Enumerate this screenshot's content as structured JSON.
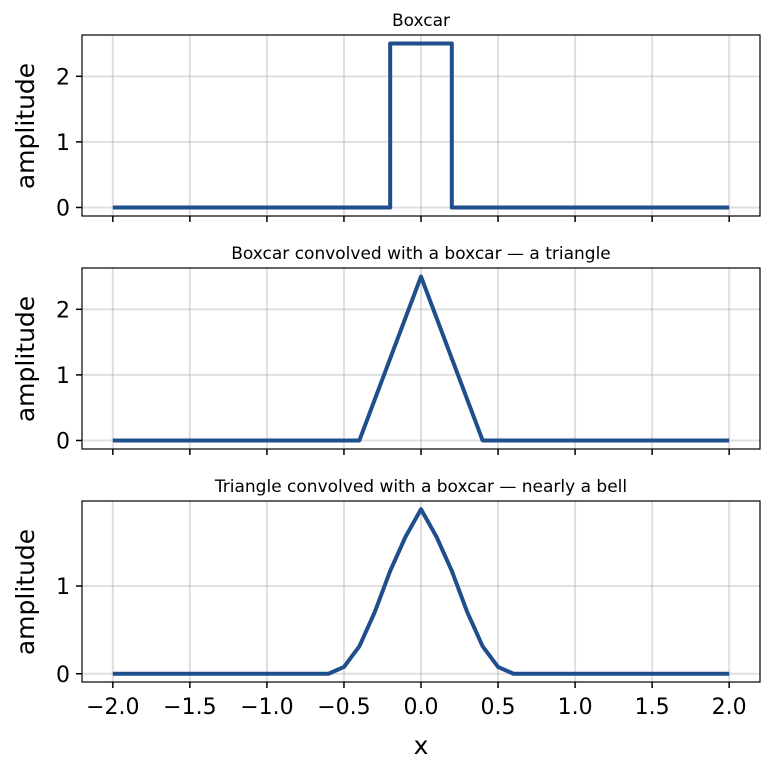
{
  "chart_data": [
    {
      "type": "line",
      "title": "Boxcar",
      "ylabel": "amplitude",
      "xlabel": "",
      "xlim": [
        -2.2,
        2.2
      ],
      "ylim": [
        -0.13,
        2.63
      ],
      "x_ticks": [
        -2.0,
        -1.5,
        -1.0,
        -0.5,
        0.0,
        0.5,
        1.0,
        1.5,
        2.0
      ],
      "y_ticks": [
        0,
        1,
        2
      ],
      "grid": true,
      "show_x_tick_labels": false,
      "series": [
        {
          "color": "#1f4e8c",
          "x": [
            -2.0,
            -0.2,
            -0.2,
            0.2,
            0.2,
            2.0
          ],
          "y": [
            0,
            0,
            2.5,
            2.5,
            0,
            0
          ]
        }
      ]
    },
    {
      "type": "line",
      "title": "Boxcar convolved with a boxcar — a triangle",
      "ylabel": "amplitude",
      "xlabel": "",
      "xlim": [
        -2.2,
        2.2
      ],
      "ylim": [
        -0.13,
        2.63
      ],
      "x_ticks": [
        -2.0,
        -1.5,
        -1.0,
        -0.5,
        0.0,
        0.5,
        1.0,
        1.5,
        2.0
      ],
      "y_ticks": [
        0,
        1,
        2
      ],
      "grid": true,
      "show_x_tick_labels": false,
      "series": [
        {
          "color": "#1f4e8c",
          "x": [
            -2.0,
            -0.4,
            0.0,
            0.4,
            2.0
          ],
          "y": [
            0,
            0,
            2.5,
            0,
            0
          ]
        }
      ]
    },
    {
      "type": "line",
      "title": "Triangle convolved with a boxcar — nearly a bell",
      "ylabel": "amplitude",
      "xlabel": "x",
      "xlim": [
        -2.2,
        2.2
      ],
      "ylim": [
        -0.094,
        1.969
      ],
      "x_ticks": [
        -2.0,
        -1.5,
        -1.0,
        -0.5,
        0.0,
        0.5,
        1.0,
        1.5,
        2.0
      ],
      "x_tick_labels": [
        "−2.0",
        "−1.5",
        "−1.0",
        "−0.5",
        "0.0",
        "0.5",
        "1.0",
        "1.5",
        "2.0"
      ],
      "y_ticks": [
        0,
        1
      ],
      "grid": true,
      "show_x_tick_labels": true,
      "series": [
        {
          "color": "#1f4e8c",
          "x": [
            -2.0,
            -0.6,
            -0.5,
            -0.4,
            -0.3,
            -0.2,
            -0.1,
            0.0,
            0.1,
            0.2,
            0.3,
            0.4,
            0.5,
            0.6,
            2.0
          ],
          "y": [
            0,
            0,
            0.078,
            0.313,
            0.703,
            1.172,
            1.563,
            1.875,
            1.563,
            1.172,
            0.703,
            0.313,
            0.078,
            0,
            0
          ]
        }
      ]
    }
  ]
}
